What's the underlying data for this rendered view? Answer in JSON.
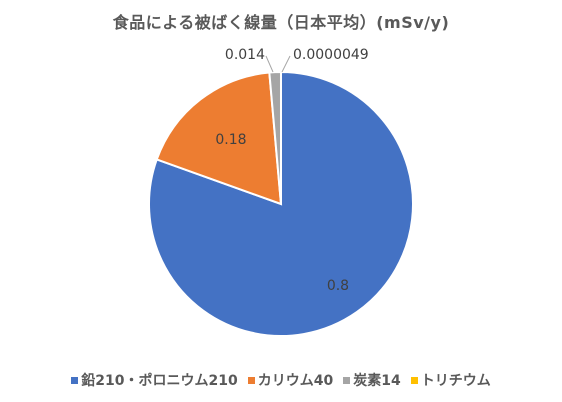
{
  "chart_data": {
    "type": "pie",
    "title": "食品による被ばく線量（日本平均）(mSv/y)",
    "series": [
      {
        "name": "鉛210・ポロニウム210",
        "value": 0.8,
        "label": "0.8",
        "color": "#4472C4"
      },
      {
        "name": "カリウム40",
        "value": 0.18,
        "label": "0.18",
        "color": "#ED7D31"
      },
      {
        "name": "炭素14",
        "value": 0.014,
        "label": "0.014",
        "color": "#A5A5A5"
      },
      {
        "name": "トリチウム",
        "value": 4.9e-06,
        "label": "0.0000049",
        "color": "#FFC000"
      }
    ],
    "legend_position": "bottom"
  }
}
